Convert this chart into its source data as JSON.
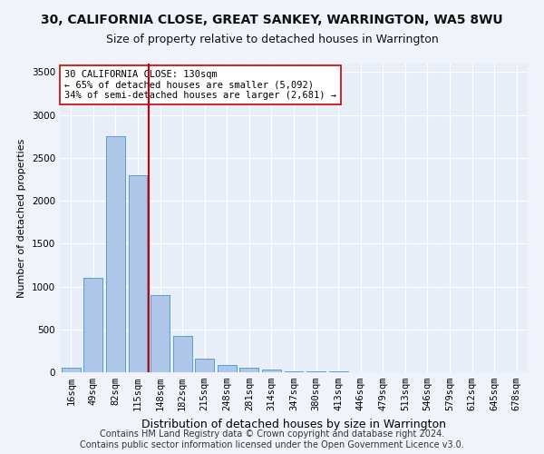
{
  "title": "30, CALIFORNIA CLOSE, GREAT SANKEY, WARRINGTON, WA5 8WU",
  "subtitle": "Size of property relative to detached houses in Warrington",
  "xlabel": "Distribution of detached houses by size in Warrington",
  "ylabel": "Number of detached properties",
  "categories": [
    "16sqm",
    "49sqm",
    "82sqm",
    "115sqm",
    "148sqm",
    "182sqm",
    "215sqm",
    "248sqm",
    "281sqm",
    "314sqm",
    "347sqm",
    "380sqm",
    "413sqm",
    "446sqm",
    "479sqm",
    "513sqm",
    "546sqm",
    "579sqm",
    "612sqm",
    "645sqm",
    "678sqm"
  ],
  "values": [
    50,
    1100,
    2750,
    2300,
    900,
    420,
    160,
    90,
    50,
    30,
    15,
    10,
    8,
    5,
    3,
    2,
    1,
    1,
    0,
    0,
    0
  ],
  "bar_color": "#aec6e8",
  "bar_edgecolor": "#5b9bd5",
  "vline_color": "#cc0000",
  "annotation_text": "30 CALIFORNIA CLOSE: 130sqm\n← 65% of detached houses are smaller (5,092)\n34% of semi-detached houses are larger (2,681) →",
  "annotation_box_color": "#ffffff",
  "annotation_box_edgecolor": "#cc0000",
  "ylim": [
    0,
    3600
  ],
  "yticks": [
    0,
    500,
    1000,
    1500,
    2000,
    2500,
    3000,
    3500
  ],
  "footer_text": "Contains HM Land Registry data © Crown copyright and database right 2024.\nContains public sector information licensed under the Open Government Licence v3.0.",
  "bg_color": "#f0f4fa",
  "plot_bg_color": "#e8eef8",
  "title_fontsize": 10,
  "subtitle_fontsize": 9,
  "xlabel_fontsize": 9,
  "ylabel_fontsize": 8,
  "footer_fontsize": 7,
  "tick_fontsize": 7.5
}
